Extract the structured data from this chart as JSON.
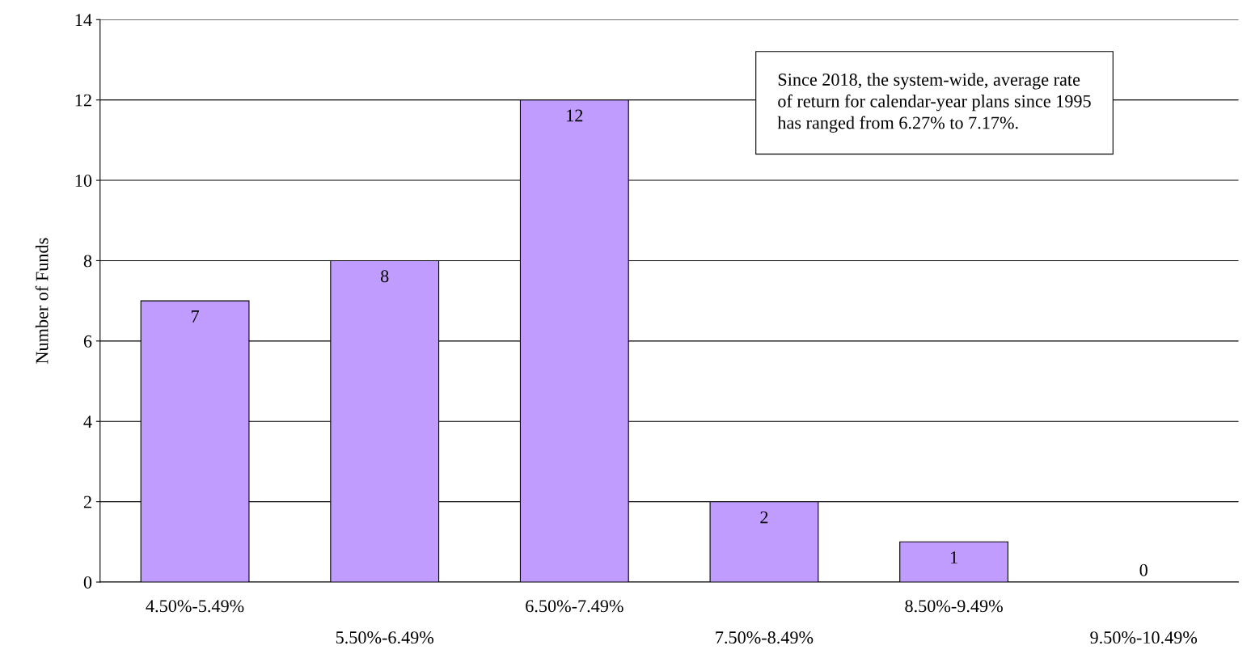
{
  "chart_data": {
    "type": "bar",
    "ylabel": "Number of Funds",
    "categories": [
      "4.50%-5.49%",
      "5.50%-6.49%",
      "6.50%-7.49%",
      "7.50%-8.49%",
      "8.50%-9.49%",
      "9.50%-10.49%"
    ],
    "values": [
      7,
      8,
      12,
      2,
      1,
      0
    ],
    "color": "#c09cff",
    "ylim": [
      0,
      14
    ],
    "yticks": [
      0,
      2,
      4,
      6,
      8,
      10,
      12,
      14
    ],
    "grid": "y",
    "data_labels": true,
    "legend": false,
    "annotations": [
      "Since 2018, the system-wide, average rate\nof return for calendar-year plans since 1995\nhas ranged from 6.27% to 7.17%."
    ]
  }
}
